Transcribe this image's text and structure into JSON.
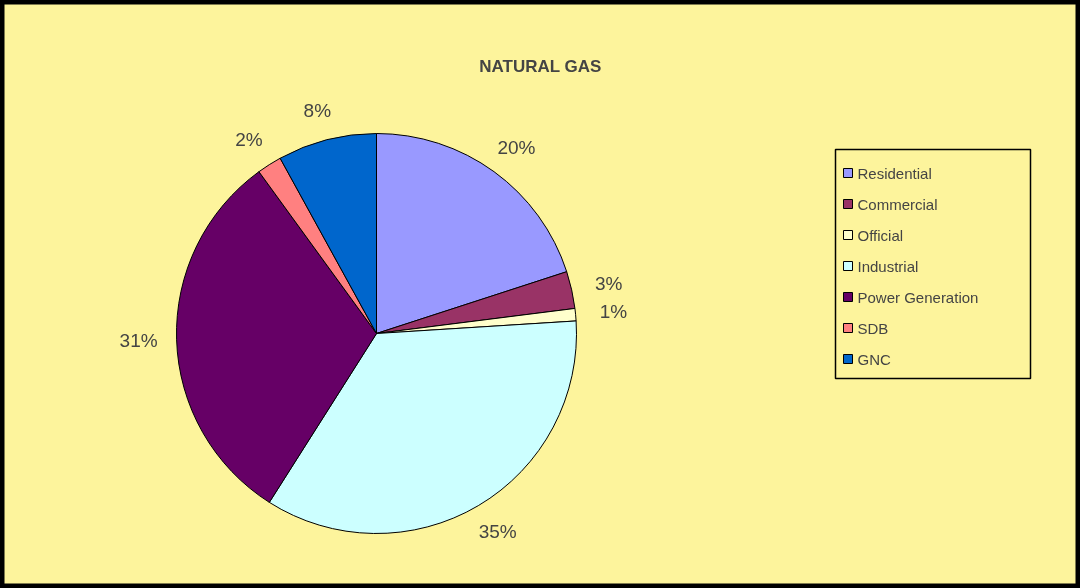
{
  "chart_data": {
    "type": "pie",
    "title": "NATURAL GAS",
    "categories": [
      "Residential",
      "Commercial",
      "Official",
      "Industrial",
      "Power Generation",
      "SDB",
      "GNC"
    ],
    "values": [
      20,
      3,
      1,
      35,
      31,
      2,
      8
    ],
    "colors": [
      "#9999ff",
      "#993366",
      "#ffffcc",
      "#ccffff",
      "#660066",
      "#ff8080",
      "#0066cc"
    ],
    "value_labels": [
      "20%",
      "3%",
      "1%",
      "35%",
      "31%",
      "2%",
      "8%"
    ],
    "legend": "right"
  }
}
